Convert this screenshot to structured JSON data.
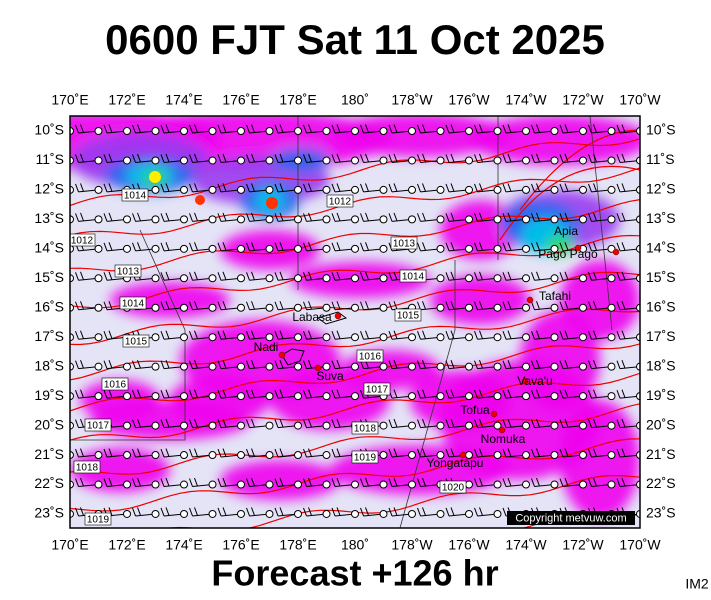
{
  "header": {
    "title": "0600 FJT Sat 11 Oct 2025"
  },
  "footer": {
    "forecast": "Forecast +126 hr",
    "tag": "IM2"
  },
  "copyright": "Copyright metvuw.com",
  "lon_labels": [
    "170˚E",
    "172˚E",
    "174˚E",
    "176˚E",
    "178˚E",
    "180˚",
    "178˚W",
    "176˚W",
    "174˚W",
    "172˚W",
    "170˚W"
  ],
  "lat_labels": [
    "10˚S",
    "11˚S",
    "12˚S",
    "13˚S",
    "14˚S",
    "15˚S",
    "16˚S",
    "17˚S",
    "18˚S",
    "19˚S",
    "20˚S",
    "21˚S",
    "22˚S",
    "23˚S"
  ],
  "places": [
    "Apia",
    "Pago Pago",
    "Tafahi",
    "Labasa",
    "Nadi",
    "Suva",
    "Vava'u",
    "Tofua",
    "Nomuka",
    "Yongatapu"
  ],
  "isobar_labels": [
    "1014",
    "1012",
    "1012",
    "1013",
    "1013",
    "1014",
    "1014",
    "1015",
    "1015",
    "1016",
    "1016",
    "1017",
    "1017",
    "1018",
    "1018",
    "1019",
    "1020",
    "1019"
  ]
}
